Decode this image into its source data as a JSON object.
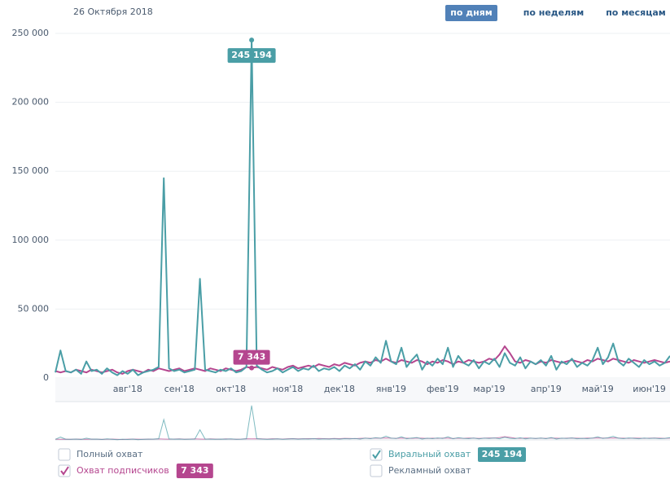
{
  "chart_data": {
    "type": "line",
    "date": "26 Октября 2018",
    "period_buttons": [
      "по дням",
      "по неделям",
      "по месяцам"
    ],
    "active_button": 0,
    "categories": [
      null,
      null,
      null,
      null,
      null,
      null,
      null,
      null,
      null,
      null,
      null,
      null,
      null,
      null,
      "авг'18",
      null,
      null,
      null,
      null,
      null,
      null,
      null,
      null,
      null,
      "сен'18",
      null,
      null,
      null,
      null,
      null,
      null,
      null,
      null,
      null,
      "окт'18",
      null,
      null,
      null,
      null,
      null,
      null,
      null,
      null,
      null,
      null,
      "ноя'18",
      null,
      null,
      null,
      null,
      null,
      null,
      null,
      null,
      null,
      "дек'18",
      null,
      null,
      null,
      null,
      null,
      null,
      null,
      null,
      null,
      "янв'19",
      null,
      null,
      null,
      null,
      null,
      null,
      null,
      null,
      null,
      "фев'19",
      null,
      null,
      null,
      null,
      null,
      null,
      null,
      null,
      "мар'19",
      null,
      null,
      null,
      null,
      null,
      null,
      null,
      null,
      null,
      null,
      "апр'19",
      null,
      null,
      null,
      null,
      null,
      null,
      null,
      null,
      null,
      "май'19",
      null,
      null,
      null,
      null,
      null,
      null,
      null,
      null,
      null,
      "июн'19",
      null,
      null,
      null,
      null
    ],
    "series": [
      {
        "name": "Охват подписчиков",
        "color": "#b5468f",
        "values": [
          5000,
          4000,
          5000,
          4000,
          6000,
          5000,
          4000,
          6000,
          5000,
          4000,
          5000,
          6000,
          4000,
          3000,
          5000,
          6000,
          5000,
          4000,
          6000,
          5000,
          7000,
          6000,
          5000,
          6000,
          7000,
          5000,
          6000,
          7000,
          6000,
          5000,
          7000,
          6000,
          5000,
          7000,
          6000,
          5000,
          6000,
          8000,
          7343,
          8000,
          7000,
          6000,
          8000,
          7000,
          6000,
          8000,
          9000,
          7000,
          8000,
          9000,
          8000,
          10000,
          9000,
          8000,
          10000,
          9000,
          11000,
          10000,
          9000,
          11000,
          12000,
          11000,
          13000,
          12000,
          14000,
          12000,
          11000,
          13000,
          12000,
          11000,
          13000,
          12000,
          10000,
          12000,
          11000,
          13000,
          12000,
          10000,
          12000,
          11000,
          13000,
          12000,
          11000,
          12000,
          14000,
          13000,
          17000,
          23000,
          18000,
          12000,
          11000,
          13000,
          12000,
          10000,
          12000,
          11000,
          13000,
          12000,
          11000,
          12000,
          13000,
          12000,
          11000,
          13000,
          12000,
          14000,
          13000,
          12000,
          14000,
          13000,
          12000,
          11000,
          13000,
          12000,
          11000,
          12000,
          13000,
          12000,
          11000,
          12000
        ],
        "value_labels": [
          null,
          null,
          null,
          null,
          null,
          null,
          null,
          null,
          null,
          null,
          null,
          null,
          null,
          null,
          null,
          null,
          null,
          null,
          null,
          null,
          null,
          null,
          null,
          null,
          null,
          null,
          null,
          null,
          null,
          null,
          null,
          null,
          null,
          null,
          null,
          null,
          null,
          null,
          "7 343",
          null,
          null,
          null,
          null,
          null,
          null,
          null,
          null,
          null,
          null,
          null,
          null,
          null,
          null,
          null,
          null,
          null,
          null,
          null,
          null,
          null,
          null,
          null,
          null,
          null,
          null,
          null,
          null,
          null,
          null,
          null,
          null,
          null,
          null,
          null,
          null,
          null,
          null,
          null,
          null,
          null,
          null,
          null,
          null,
          null,
          null,
          null,
          null,
          null,
          null,
          null,
          null,
          null,
          null,
          null,
          null,
          null,
          null,
          null,
          null,
          null,
          null,
          null,
          null,
          null,
          null,
          null,
          null,
          null,
          null,
          null,
          null,
          null,
          null,
          null,
          null,
          null,
          null,
          null,
          null,
          null
        ]
      },
      {
        "name": "Виральный охват",
        "color": "#4a9ea6",
        "values": [
          4000,
          20000,
          5000,
          4000,
          6000,
          3000,
          12000,
          5000,
          6000,
          3000,
          7000,
          4000,
          2000,
          5000,
          3000,
          6000,
          2000,
          4000,
          5000,
          6000,
          8000,
          145000,
          7000,
          5000,
          6000,
          4000,
          5000,
          6000,
          72000,
          6000,
          5000,
          4000,
          6000,
          5000,
          7000,
          4000,
          5000,
          8000,
          245194,
          9000,
          6000,
          4000,
          5000,
          7000,
          4000,
          6000,
          8000,
          5000,
          7000,
          6000,
          9000,
          5000,
          7000,
          6000,
          8000,
          5000,
          9000,
          7000,
          10000,
          6000,
          12000,
          9000,
          15000,
          11000,
          27000,
          12000,
          10000,
          22000,
          8000,
          13000,
          17000,
          6000,
          12000,
          9000,
          14000,
          10000,
          22000,
          8000,
          16000,
          11000,
          9000,
          13000,
          7000,
          12000,
          10000,
          14000,
          8000,
          18000,
          11000,
          9000,
          15000,
          7000,
          12000,
          10000,
          13000,
          9000,
          16000,
          6000,
          12000,
          10000,
          14000,
          8000,
          11000,
          9000,
          13000,
          22000,
          10000,
          15000,
          25000,
          12000,
          9000,
          14000,
          11000,
          8000,
          13000,
          10000,
          12000,
          9000,
          11000,
          16000
        ],
        "value_labels": [
          null,
          null,
          null,
          null,
          null,
          null,
          null,
          null,
          null,
          null,
          null,
          null,
          null,
          null,
          null,
          null,
          null,
          null,
          null,
          null,
          null,
          null,
          null,
          null,
          null,
          null,
          null,
          null,
          null,
          null,
          null,
          null,
          null,
          null,
          null,
          null,
          null,
          null,
          "245 194",
          null,
          null,
          null,
          null,
          null,
          null,
          null,
          null,
          null,
          null,
          null,
          null,
          null,
          null,
          null,
          null,
          null,
          null,
          null,
          null,
          null,
          null,
          null,
          null,
          null,
          null,
          null,
          null,
          null,
          null,
          null,
          null,
          null,
          null,
          null,
          null,
          null,
          null,
          null,
          null,
          null,
          null,
          null,
          null,
          null,
          null,
          null,
          null,
          null,
          null,
          null,
          null,
          null,
          null,
          null,
          null,
          null,
          null,
          null,
          null,
          null,
          null,
          null,
          null,
          null,
          null,
          null,
          null,
          null,
          null,
          null,
          null,
          null,
          null,
          null,
          null,
          null,
          null,
          null,
          null,
          null
        ]
      }
    ],
    "unchecked_series": [
      "Полный охват",
      "Рекламный охват"
    ],
    "ylim": [
      0,
      250000
    ],
    "yticks": [
      0,
      {
        "value": 50000,
        "label": "50 000"
      },
      {
        "value": 100000,
        "label": "100 000"
      },
      {
        "value": 150000,
        "label": "150 000"
      },
      {
        "value": 200000,
        "label": "200 000"
      },
      {
        "value": 250000,
        "label": "250 000"
      }
    ],
    "grid": true
  }
}
